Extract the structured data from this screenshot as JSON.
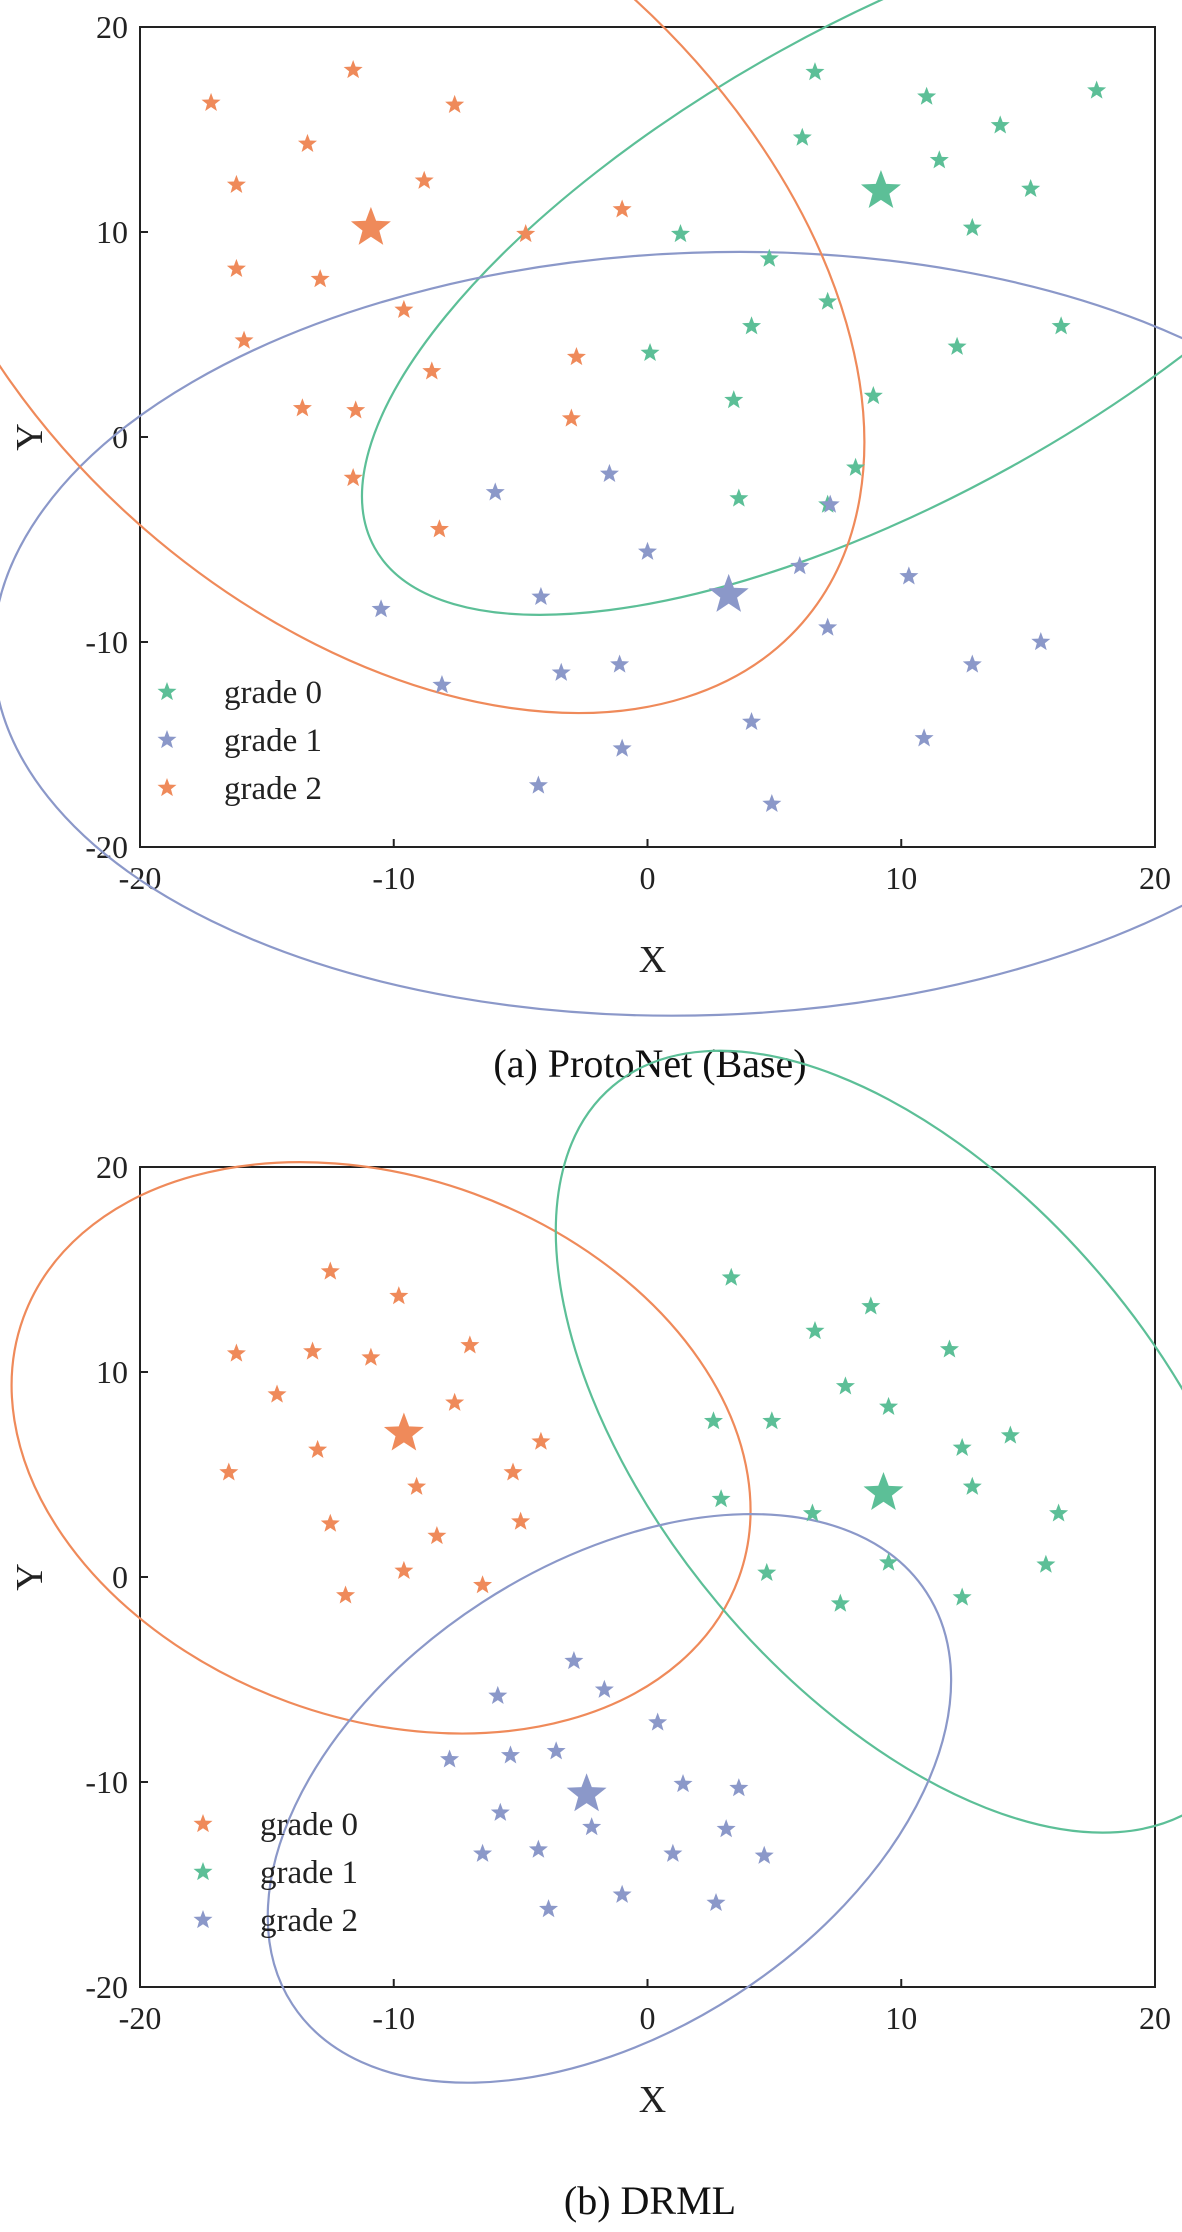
{
  "colors": {
    "teal": "#5cbf97",
    "blue": "#8b98c9",
    "orange": "#ef8a5a"
  },
  "chart_data": [
    {
      "type": "scatter",
      "caption": "(a) ProtoNet (Base)",
      "xlabel": "X",
      "ylabel": "Y",
      "xlim": [
        -20,
        20
      ],
      "ylim": [
        -20,
        20
      ],
      "xticks": [
        "-20",
        "-10",
        "0",
        "10",
        "20"
      ],
      "yticks": [
        "-20",
        "-10",
        "0",
        "10",
        "20"
      ],
      "grid": false,
      "marker": "star",
      "legend_position": "bottom-left",
      "series": [
        {
          "name": "grade 0",
          "color": "#5cbf97",
          "prototype": [
            9.2,
            12
          ],
          "ellipse": {
            "center": [
              9.8,
              8.7
            ],
            "rx": 23.5,
            "ry": 11.6,
            "angle_deg": 29
          },
          "points": [
            [
              6.6,
              17.8
            ],
            [
              11,
              16.6
            ],
            [
              17.7,
              16.9
            ],
            [
              13.9,
              15.2
            ],
            [
              6.1,
              14.6
            ],
            [
              11.5,
              13.5
            ],
            [
              15.1,
              12.1
            ],
            [
              1.3,
              9.9
            ],
            [
              12.8,
              10.2
            ],
            [
              4.8,
              8.7
            ],
            [
              7.1,
              6.6
            ],
            [
              4.1,
              5.4
            ],
            [
              16.3,
              5.4
            ],
            [
              0.1,
              4.1
            ],
            [
              12.2,
              4.4
            ],
            [
              3.4,
              1.8
            ],
            [
              8.9,
              2
            ],
            [
              8.2,
              -1.5
            ],
            [
              3.6,
              -3
            ],
            [
              7.1,
              -3.3
            ]
          ]
        },
        {
          "name": "grade 1",
          "color": "#8b98c9",
          "prototype": [
            3.2,
            -7.7
          ],
          "ellipse": {
            "center": [
              2.3,
              -9.6
            ],
            "rx": 28.1,
            "ry": 18.6,
            "angle_deg": 2
          },
          "points": [
            [
              -1.5,
              -1.8
            ],
            [
              -6,
              -2.7
            ],
            [
              7.2,
              -3.3
            ],
            [
              0,
              -5.6
            ],
            [
              6,
              -6.3
            ],
            [
              10.3,
              -6.8
            ],
            [
              -4.2,
              -7.8
            ],
            [
              -10.5,
              -8.4
            ],
            [
              7.1,
              -9.3
            ],
            [
              15.5,
              -10
            ],
            [
              -1.1,
              -11.1
            ],
            [
              12.8,
              -11.1
            ],
            [
              -3.4,
              -11.5
            ],
            [
              -8.1,
              -12.1
            ],
            [
              4.1,
              -13.9
            ],
            [
              10.9,
              -14.7
            ],
            [
              -1,
              -15.2
            ],
            [
              -4.3,
              -17
            ],
            [
              4.9,
              -17.9
            ]
          ]
        },
        {
          "name": "grade 2",
          "color": "#ef8a5a",
          "prototype": [
            -10.9,
            10.2
          ],
          "ellipse": {
            "center": [
              -10.5,
              8.8
            ],
            "rx": 22,
            "ry": 17.6,
            "angle_deg": -41
          },
          "points": [
            [
              -11.6,
              17.9
            ],
            [
              -17.2,
              16.3
            ],
            [
              -7.6,
              16.2
            ],
            [
              -13.4,
              14.3
            ],
            [
              -16.2,
              12.3
            ],
            [
              -8.8,
              12.5
            ],
            [
              -1,
              11.1
            ],
            [
              -4.8,
              9.9
            ],
            [
              -16.2,
              8.2
            ],
            [
              -12.9,
              7.7
            ],
            [
              -9.6,
              6.2
            ],
            [
              -15.9,
              4.7
            ],
            [
              -2.8,
              3.9
            ],
            [
              -8.5,
              3.2
            ],
            [
              -13.6,
              1.4
            ],
            [
              -11.5,
              1.3
            ],
            [
              -3,
              0.9
            ],
            [
              -11.6,
              -2
            ],
            [
              -8.2,
              -4.5
            ]
          ]
        }
      ]
    },
    {
      "type": "scatter",
      "caption": "(b) DRML",
      "xlabel": "X",
      "ylabel": "Y",
      "xlim": [
        -20,
        20
      ],
      "ylim": [
        -20,
        20
      ],
      "xticks": [
        "-20",
        "-10",
        "0",
        "10",
        "20"
      ],
      "yticks": [
        "-20",
        "-10",
        "0",
        "10",
        "20"
      ],
      "grid": false,
      "marker": "star",
      "legend_position": "bottom-left",
      "series": [
        {
          "name": "grade 0",
          "color": "#ef8a5a",
          "prototype": [
            -9.6,
            7
          ],
          "ellipse": {
            "center": [
              -10.5,
              6.3
            ],
            "rx": 15,
            "ry": 13.2,
            "angle_deg": -20
          },
          "points": [
            [
              -12.5,
              14.9
            ],
            [
              -9.8,
              13.7
            ],
            [
              -16.2,
              10.9
            ],
            [
              -13.2,
              11
            ],
            [
              -10.9,
              10.7
            ],
            [
              -7,
              11.3
            ],
            [
              -14.6,
              8.9
            ],
            [
              -7.6,
              8.5
            ],
            [
              -13,
              6.2
            ],
            [
              -9.1,
              4.4
            ],
            [
              -16.5,
              5.1
            ],
            [
              -5.3,
              5.1
            ],
            [
              -4.2,
              6.6
            ],
            [
              -12.5,
              2.6
            ],
            [
              -8.3,
              2
            ],
            [
              -5,
              2.7
            ],
            [
              -9.6,
              0.3
            ],
            [
              -6.5,
              -0.4
            ],
            [
              -11.9,
              -0.9
            ]
          ]
        },
        {
          "name": "grade 1",
          "color": "#5cbf97",
          "prototype": [
            9.3,
            4.1
          ],
          "ellipse": {
            "center": [
              10.4,
              6.6
            ],
            "rx": 18.3,
            "ry": 12.3,
            "angle_deg": -50
          },
          "points": [
            [
              3.3,
              14.6
            ],
            [
              8.8,
              13.2
            ],
            [
              6.6,
              12
            ],
            [
              11.9,
              11.1
            ],
            [
              7.8,
              9.3
            ],
            [
              9.5,
              8.3
            ],
            [
              2.6,
              7.6
            ],
            [
              4.9,
              7.6
            ],
            [
              14.3,
              6.9
            ],
            [
              12.4,
              6.3
            ],
            [
              12.8,
              4.4
            ],
            [
              2.9,
              3.8
            ],
            [
              6.5,
              3.1
            ],
            [
              16.2,
              3.1
            ],
            [
              4.7,
              0.2
            ],
            [
              9.5,
              0.7
            ],
            [
              15.7,
              0.6
            ],
            [
              7.6,
              -1.3
            ],
            [
              12.4,
              -1
            ]
          ]
        },
        {
          "name": "grade 2",
          "color": "#8b98c9",
          "prototype": [
            -2.4,
            -10.6
          ],
          "ellipse": {
            "center": [
              -1.5,
              -10.8
            ],
            "rx": 14.9,
            "ry": 11.4,
            "angle_deg": 33
          },
          "points": [
            [
              -2.9,
              -4.1
            ],
            [
              -1.7,
              -5.5
            ],
            [
              -5.9,
              -5.8
            ],
            [
              0.4,
              -7.1
            ],
            [
              -7.8,
              -8.9
            ],
            [
              -5.4,
              -8.7
            ],
            [
              -3.6,
              -8.5
            ],
            [
              1.4,
              -10.1
            ],
            [
              3.6,
              -10.3
            ],
            [
              -5.8,
              -11.5
            ],
            [
              -2.2,
              -12.2
            ],
            [
              3.1,
              -12.3
            ],
            [
              -6.5,
              -13.5
            ],
            [
              -4.3,
              -13.3
            ],
            [
              1,
              -13.5
            ],
            [
              4.6,
              -13.6
            ],
            [
              -1,
              -15.5
            ],
            [
              2.7,
              -15.9
            ],
            [
              -3.9,
              -16.2
            ]
          ]
        }
      ]
    }
  ]
}
